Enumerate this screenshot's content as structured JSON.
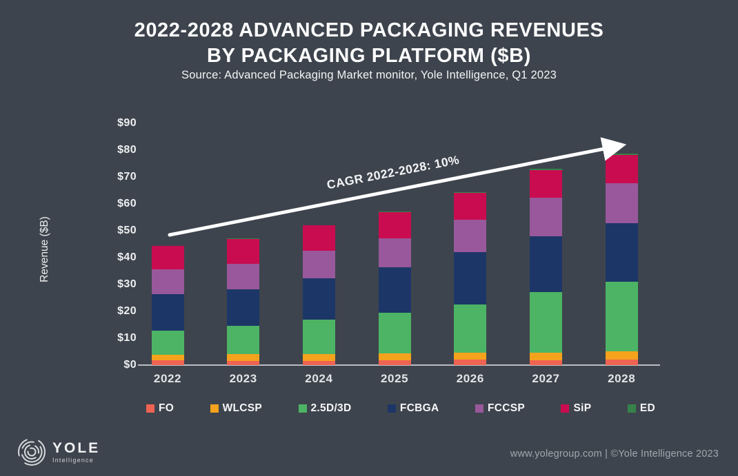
{
  "title": {
    "line1": "2022-2028 ADVANCED PACKAGING REVENUES",
    "line2": "BY PACKAGING PLATFORM ($B)"
  },
  "subtitle": "Source: Advanced Packaging Market monitor, Yole Intelligence, Q1 2023",
  "annotation": {
    "cagr_label": "CAGR 2022-2028: 10%"
  },
  "footer": {
    "logo_text": "YOLE",
    "logo_subtext": "Intelligence",
    "credit": "www.yolegroup.com | ©Yole Intelligence 2023"
  },
  "colors": {
    "background": "#3e444d",
    "axis_line": "#c9cdd2",
    "arrow": "#ffffff",
    "fo": "#ee6352",
    "wlcsp": "#f5a21d",
    "green_25d3d": "#4cb464",
    "fcbga": "#1c3667",
    "fccsp": "#99589b",
    "sip": "#c90c50",
    "ed": "#35834a"
  },
  "chart_data": {
    "type": "bar",
    "stacked": true,
    "title": "2022-2028 Advanced Packaging Revenues by Packaging Platform ($B)",
    "xlabel": "",
    "ylabel": "Revenue ($B)",
    "ylim": [
      0,
      90
    ],
    "ytick_step": 10,
    "ytick_prefix": "$",
    "grid": false,
    "legend_position": "bottom",
    "annotation": "CAGR 2022-2028: 10%",
    "categories": [
      "2022",
      "2023",
      "2024",
      "2025",
      "2026",
      "2027",
      "2028"
    ],
    "series": [
      {
        "name": "FO",
        "color": "#ee6352",
        "values": [
          1.7,
          1.5,
          1.5,
          1.7,
          2.1,
          1.7,
          2.0
        ]
      },
      {
        "name": "WLCSP",
        "color": "#f5a21d",
        "values": [
          2.2,
          2.6,
          2.6,
          2.7,
          2.6,
          2.8,
          3.2
        ]
      },
      {
        "name": "2.5D/3D",
        "color": "#4cb464",
        "values": [
          8.8,
          10.4,
          12.9,
          15.0,
          18.0,
          22.7,
          25.8
        ]
      },
      {
        "name": "FCBGA",
        "color": "#1c3667",
        "values": [
          13.8,
          13.7,
          15.3,
          17.0,
          19.4,
          20.7,
          21.9
        ]
      },
      {
        "name": "FCCSP",
        "color": "#99589b",
        "values": [
          9.2,
          9.6,
          10.3,
          10.9,
          12.1,
          14.4,
          14.7
        ]
      },
      {
        "name": "SiP",
        "color": "#c90c50",
        "values": [
          8.6,
          9.2,
          9.4,
          9.7,
          9.8,
          10.4,
          10.7
        ]
      },
      {
        "name": "ED",
        "color": "#35834a",
        "values": [
          0.1,
          0.1,
          0.2,
          0.2,
          0.3,
          0.4,
          0.5
        ]
      }
    ],
    "totals": [
      44.4,
      47.1,
      52.2,
      57.2,
      64.3,
      73.1,
      78.8
    ]
  }
}
